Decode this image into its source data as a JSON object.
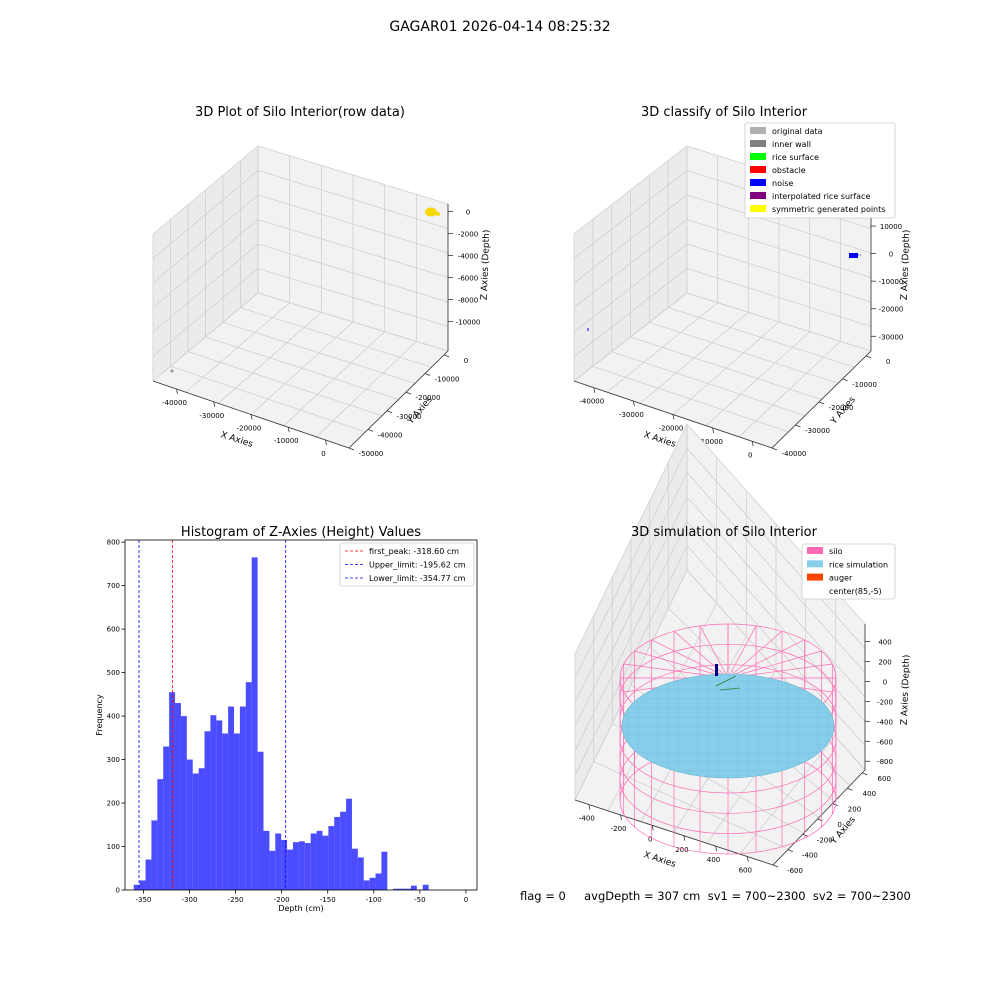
{
  "figure": {
    "suptitle": "GAGAR01 2026-04-14 08:25:32",
    "status_line": "flag = 0     avgDepth = 307 cm  sv1 = 700~2300  sv2 = 700~2300"
  },
  "colors": {
    "pane": "#f2f2f2",
    "pane_side": "#ebebeb",
    "grid": "#d0d0d0",
    "hist": "#0000ff",
    "silo": "#ff69b4",
    "rice": "#87ceeb",
    "auger": "#ff4500",
    "raw_points": "#f5d800",
    "noise": "#0000ff"
  },
  "chart_data": [
    {
      "id": "raw3d",
      "type": "scatter",
      "title": "3D Plot of Silo Interior(row data)",
      "xlabel": "X Axies",
      "ylabel": "Y Axies",
      "zlabel": "Z Axies (Depth)",
      "xticks": [
        "-40000",
        "-30000",
        "-20000",
        "-10000",
        "0"
      ],
      "yticks": [
        "-50000",
        "-40000",
        "-30000",
        "-20000",
        "-10000",
        "0"
      ],
      "zticks": [
        "0",
        "-2000",
        "-4000",
        "-6000",
        "-8000",
        "-10000"
      ],
      "series": [
        {
          "name": "points",
          "color": "#f5d800",
          "points": [
            {
              "x": 0,
              "y": 0,
              "z": 0
            }
          ]
        },
        {
          "name": "outlier",
          "color": "#9e9e9e",
          "points": [
            {
              "x": -42000,
              "y": -50000,
              "z": -10000
            }
          ]
        }
      ]
    },
    {
      "id": "classify3d",
      "type": "scatter",
      "title": "3D classify of Silo Interior",
      "xlabel": "X Axies",
      "ylabel": "Y Axies",
      "zlabel": "Z Axies (Depth)",
      "xticks": [
        "-40000",
        "-30000",
        "-20000",
        "-10000",
        "0"
      ],
      "yticks": [
        "-40000",
        "-30000",
        "-20000",
        "-10000",
        "0"
      ],
      "zticks": [
        "10000",
        "0",
        "-10000",
        "-20000",
        "-30000"
      ],
      "legend": [
        {
          "label": "original data",
          "color": "#b0b0b0"
        },
        {
          "label": "inner wall",
          "color": "#808080"
        },
        {
          "label": "rice surface",
          "color": "#00ff00"
        },
        {
          "label": "obstacle",
          "color": "#ff0000"
        },
        {
          "label": "noise",
          "color": "#0000ff"
        },
        {
          "label": "interpolated rice surface",
          "color": "#800080"
        },
        {
          "label": "symmetric generated points",
          "color": "#ffff00"
        }
      ]
    },
    {
      "id": "hist",
      "type": "bar",
      "title": "Histogram of Z-Axies (Height) Values",
      "xlabel": "Depth (cm)",
      "ylabel": "Frequency",
      "xlim": [
        -370,
        12
      ],
      "ylim": [
        0,
        805
      ],
      "xticks": [
        -350,
        -300,
        -250,
        -200,
        -150,
        -100,
        -50,
        0
      ],
      "yticks": [
        0,
        100,
        200,
        300,
        400,
        500,
        600,
        700,
        800
      ],
      "bin_start": -360.5,
      "bin_width": 6.4,
      "values": [
        12,
        22,
        70,
        160,
        255,
        330,
        455,
        430,
        400,
        300,
        268,
        280,
        365,
        402,
        390,
        360,
        422,
        360,
        422,
        478,
        765,
        318,
        136,
        90,
        130,
        115,
        93,
        110,
        112,
        108,
        130,
        136,
        125,
        147,
        168,
        180,
        210,
        95,
        75,
        22,
        28,
        38,
        88,
        0,
        3,
        3,
        3,
        10,
        0,
        12
      ],
      "lines": [
        {
          "label": "first_peak: -318.60 cm",
          "value": -318.6,
          "color": "#ff0000"
        },
        {
          "label": "Upper_limit: -195.62 cm",
          "value": -195.62,
          "color": "#0000ff"
        },
        {
          "label": "Lower_limit: -354.77 cm",
          "value": -354.77,
          "color": "#0000ff"
        }
      ]
    },
    {
      "id": "sim3d",
      "type": "surface",
      "title": "3D simulation of Silo Interior",
      "xlabel": "X Axies",
      "ylabel": "Y Axies",
      "zlabel": "Z Axies (Depth)",
      "xticks": [
        "-400",
        "-200",
        "0",
        "200",
        "400",
        "600"
      ],
      "yticks": [
        "-600",
        "-400",
        "-200",
        "0",
        "200",
        "400",
        "600"
      ],
      "zticks": [
        "400",
        "200",
        "0",
        "-200",
        "-400",
        "-600",
        "-800"
      ],
      "legend": [
        {
          "label": "silo",
          "color": "#ff69b4"
        },
        {
          "label": "rice simulation",
          "color": "#87ceeb"
        },
        {
          "label": "auger",
          "color": "#ff4500"
        },
        {
          "label": "center(85,-5)",
          "color": ""
        }
      ]
    }
  ]
}
